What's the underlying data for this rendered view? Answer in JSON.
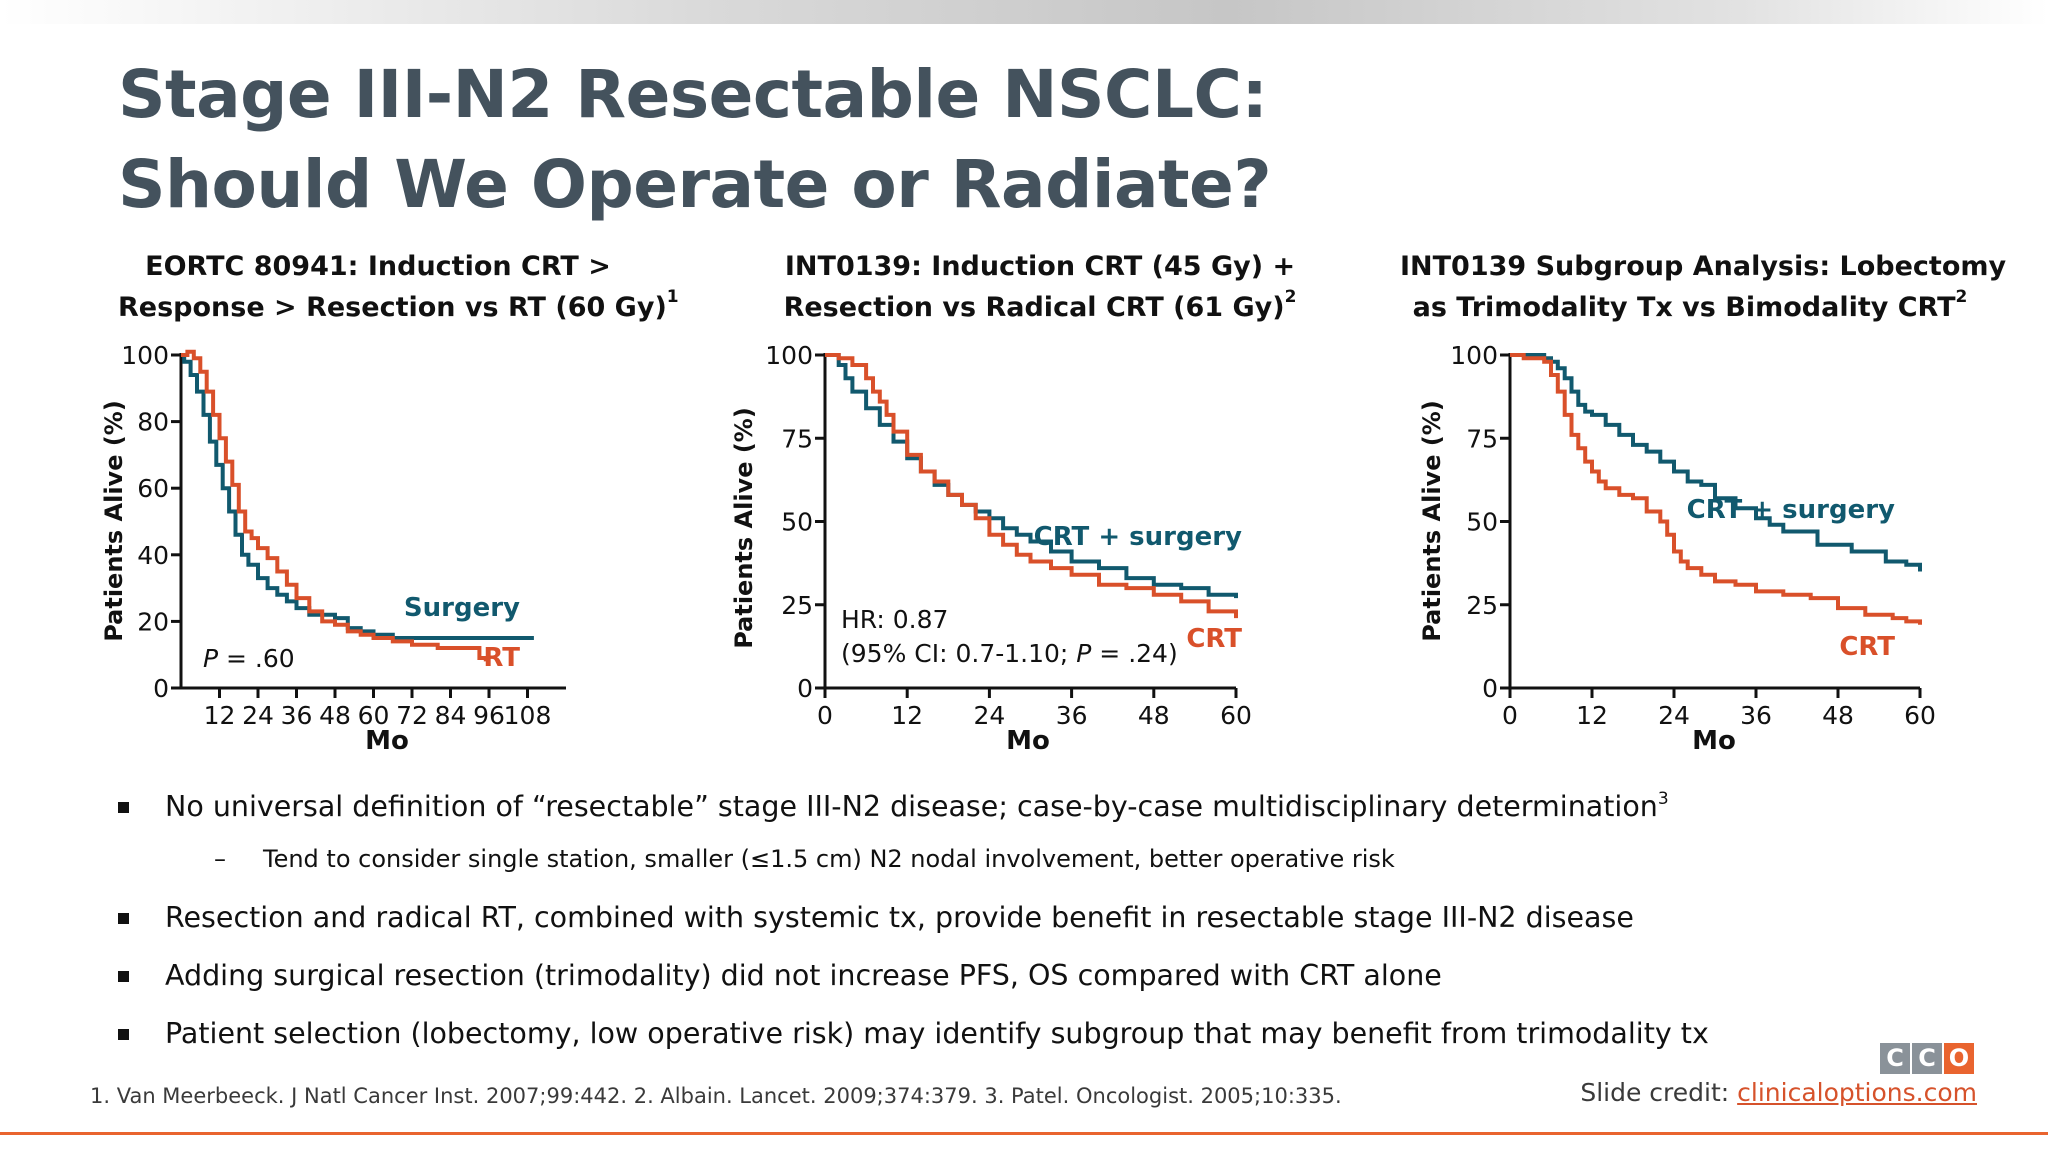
{
  "slide": {
    "title_line1": "Stage III-N2 Resectable NSCLC:",
    "title_line2": "Should We Operate or Radiate?"
  },
  "colors": {
    "teal": "#11596e",
    "orange": "#d9502a",
    "accent": "#e9642f",
    "title": "#44525d"
  },
  "panels": [
    {
      "title_line1": "EORTC 80941: Induction CRT >",
      "title_line2": "Response > Resection vs RT (60 Gy)",
      "sup": "1"
    },
    {
      "title_line1": "INT0139: Induction CRT (45 Gy) +",
      "title_line2": "Resection vs Radical CRT (61 Gy)",
      "sup": "2"
    },
    {
      "title_line1": "INT0139 Subgroup Analysis: Lobectomy",
      "title_line2": "as Trimodality Tx vs Bimodality CRT",
      "sup": "2"
    }
  ],
  "chart_data": [
    {
      "type": "line",
      "title": "EORTC 80941: Induction CRT > Response > Resection vs RT (60 Gy)",
      "xlabel": "Mo",
      "ylabel": "Patients Alive (%)",
      "xlim": [
        0,
        120
      ],
      "ylim": [
        0,
        100
      ],
      "xticks": [
        12,
        24,
        36,
        48,
        60,
        72,
        84,
        96,
        108
      ],
      "xtick_labels": [
        "12",
        "24",
        "36",
        "48",
        "60",
        "72",
        "84",
        "96",
        "108"
      ],
      "yticks": [
        0,
        20,
        40,
        60,
        80,
        100
      ],
      "annotations": {
        "p_prefix": "P",
        "p_value": " = .60"
      },
      "series": [
        {
          "name": "Surgery",
          "color": "#11596e",
          "x": [
            0,
            1,
            3,
            5,
            7,
            9,
            11,
            13,
            15,
            17,
            19,
            21,
            24,
            27,
            30,
            33,
            36,
            40,
            44,
            48,
            52,
            56,
            60,
            66,
            72,
            80,
            90,
            100,
            110
          ],
          "y": [
            100,
            98,
            94,
            89,
            82,
            74,
            67,
            60,
            53,
            46,
            40,
            37,
            33,
            30,
            28,
            26,
            24,
            22,
            22,
            21,
            18,
            17,
            16,
            15,
            15,
            15,
            15,
            15,
            15
          ]
        },
        {
          "name": "RT",
          "color": "#d9502a",
          "x": [
            0,
            2,
            4,
            6,
            8,
            10,
            12,
            14,
            16,
            18,
            20,
            22,
            24,
            27,
            30,
            33,
            36,
            40,
            44,
            48,
            52,
            56,
            60,
            66,
            72,
            80,
            88,
            92,
            93,
            95
          ],
          "y": [
            100,
            101,
            99,
            95,
            89,
            82,
            75,
            68,
            61,
            53,
            47,
            45,
            42,
            39,
            35,
            31,
            27,
            23,
            20,
            19,
            17,
            16,
            15,
            14,
            13,
            12,
            12,
            12,
            9,
            8
          ]
        }
      ]
    },
    {
      "type": "line",
      "title": "INT0139: Induction CRT (45 Gy) + Resection vs Radical CRT (61 Gy)",
      "xlabel": "Mo",
      "ylabel": "Patients Alive (%)",
      "xlim": [
        0,
        60
      ],
      "ylim": [
        0,
        100
      ],
      "xticks": [
        0,
        12,
        24,
        36,
        48,
        60
      ],
      "yticks": [
        0,
        25,
        50,
        75,
        100
      ],
      "annotations": {
        "hr": "HR: 0.87",
        "ci_prefix": "(95% CI: 0.7-1.10; ",
        "p_prefix": "P",
        "p_value": " = .24)"
      },
      "series": [
        {
          "name": "CRT + surgery",
          "color": "#11596e",
          "x": [
            0,
            2,
            3,
            4,
            6,
            8,
            10,
            12,
            14,
            16,
            18,
            20,
            22,
            24,
            26,
            28,
            30,
            33,
            36,
            40,
            44,
            48,
            52,
            56,
            60
          ],
          "y": [
            100,
            97,
            93,
            89,
            84,
            79,
            74,
            69,
            65,
            61,
            58,
            55,
            53,
            51,
            48,
            46,
            44,
            41,
            38,
            36,
            33,
            31,
            30,
            28,
            27
          ]
        },
        {
          "name": "CRT",
          "color": "#d9502a",
          "x": [
            0,
            2,
            4,
            6,
            7,
            8,
            9,
            10,
            12,
            14,
            16,
            18,
            20,
            22,
            24,
            26,
            28,
            30,
            33,
            36,
            40,
            44,
            48,
            52,
            56,
            60
          ],
          "y": [
            100,
            99,
            97,
            93,
            89,
            86,
            82,
            77,
            70,
            65,
            62,
            58,
            55,
            51,
            46,
            43,
            40,
            38,
            36,
            34,
            31,
            30,
            28,
            26,
            23,
            21
          ]
        }
      ]
    },
    {
      "type": "line",
      "title": "INT0139 Subgroup Analysis: Lobectomy as Trimodality Tx vs Bimodality CRT",
      "xlabel": "Mo",
      "ylabel": "Patients Alive (%)",
      "xlim": [
        0,
        60
      ],
      "ylim": [
        0,
        100
      ],
      "xticks": [
        0,
        12,
        24,
        36,
        48,
        60
      ],
      "yticks": [
        0,
        25,
        50,
        75,
        100
      ],
      "series": [
        {
          "name": "CRT + surgery",
          "color": "#11596e",
          "x": [
            0,
            3,
            5,
            6,
            7,
            8,
            9,
            10,
            11,
            12,
            14,
            16,
            18,
            20,
            22,
            24,
            26,
            28,
            30,
            33,
            36,
            38,
            40,
            45,
            50,
            55,
            58,
            60
          ],
          "y": [
            100,
            100,
            99,
            98,
            96,
            93,
            89,
            85,
            83,
            82,
            79,
            76,
            73,
            71,
            68,
            65,
            62,
            61,
            57,
            54,
            51,
            49,
            47,
            43,
            41,
            38,
            37,
            35
          ]
        },
        {
          "name": "CRT",
          "color": "#d9502a",
          "x": [
            0,
            2,
            4,
            5,
            6,
            7,
            8,
            9,
            10,
            11,
            12,
            13,
            14,
            16,
            18,
            20,
            22,
            23,
            24,
            25,
            26,
            28,
            30,
            33,
            36,
            40,
            44,
            48,
            52,
            56,
            58,
            60
          ],
          "y": [
            100,
            99,
            99,
            98,
            94,
            89,
            82,
            76,
            72,
            68,
            65,
            62,
            60,
            58,
            57,
            53,
            50,
            46,
            41,
            38,
            36,
            34,
            32,
            31,
            29,
            28,
            27,
            24,
            22,
            21,
            20,
            19
          ]
        }
      ]
    }
  ],
  "bullets": [
    {
      "text": "No universal definition of “resectable” stage III-N2 disease; case-by-case multidisciplinary determination",
      "sup": "3"
    },
    {
      "sub": "Tend to consider single station, smaller (≤1.5 cm) N2 nodal involvement, better operative risk"
    },
    {
      "text": "Resection and radical RT, combined with systemic tx, provide benefit in resectable stage III-N2 disease"
    },
    {
      "text": "Adding surgical resection (trimodality) did not increase PFS, OS compared with CRT alone"
    },
    {
      "text": "Patient selection (lobectomy, low operative risk) may identify subgroup that may benefit from trimodality tx"
    }
  ],
  "footer": {
    "references": "1. Van Meerbeeck. J Natl Cancer Inst. 2007;99:442. 2. Albain. Lancet. 2009;374:379. 3. Patel. Oncologist. 2005;10:335.",
    "credit_label": "Slide credit: ",
    "credit_link": "clinicaloptions.com",
    "logo_letters": [
      "C",
      "C",
      "O"
    ]
  }
}
